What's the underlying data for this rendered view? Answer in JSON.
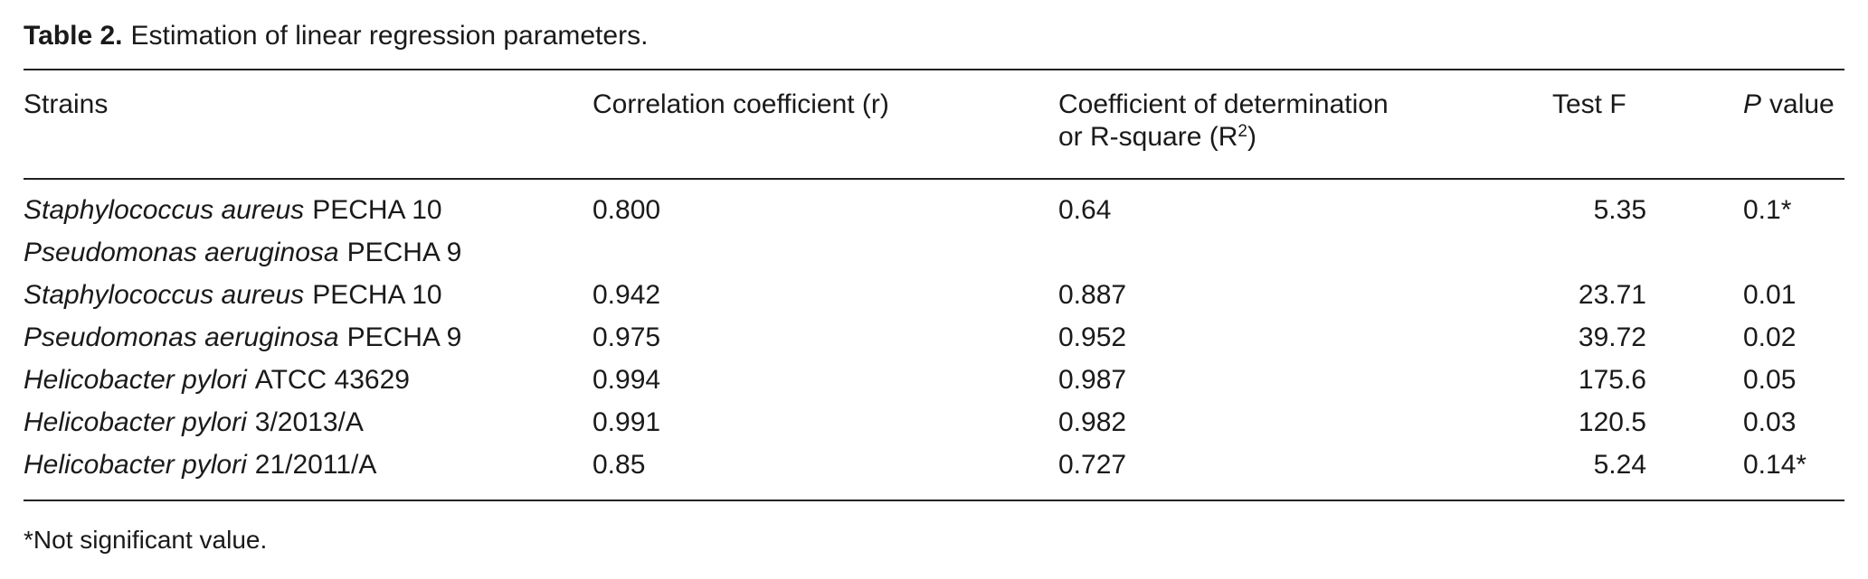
{
  "caption": {
    "label": "Table 2.",
    "text": "Estimation of linear regression parameters."
  },
  "table": {
    "header": {
      "strains": "Strains",
      "r": "Correlation coefficient (r)",
      "r2": {
        "line1": "Coefficient of determination",
        "line2": "or R-square (R",
        "sup": "2",
        "close": ")"
      },
      "f": "Test F",
      "p": {
        "italic": "P",
        "rest": "value"
      }
    },
    "rows": [
      {
        "strains": [
          {
            "species": "Staphylococcus aureus",
            "code": "PECHA 10"
          },
          {
            "species": "Pseudomonas aeruginosa",
            "code": "PECHA 9"
          }
        ],
        "r": "0.800",
        "r2": "0.64",
        "f": "5.35",
        "p": "0.1*"
      },
      {
        "strains": [
          {
            "species": "Staphylococcus aureus",
            "code": "PECHA 10"
          }
        ],
        "r": "0.942",
        "r2": "0.887",
        "f": "23.71",
        "p": "0.01"
      },
      {
        "strains": [
          {
            "species": "Pseudomonas aeruginosa",
            "code": "PECHA 9"
          }
        ],
        "r": "0.975",
        "r2": "0.952",
        "f": "39.72",
        "p": "0.02"
      },
      {
        "strains": [
          {
            "species": "Helicobacter pylori",
            "code": "ATCC 43629"
          }
        ],
        "r": "0.994",
        "r2": "0.987",
        "f": "175.6",
        "p": "0.05"
      },
      {
        "strains": [
          {
            "species": "Helicobacter pylori",
            "code": "3/2013/A"
          }
        ],
        "r": "0.991",
        "r2": "0.982",
        "f": "120.5",
        "p": "0.03"
      },
      {
        "strains": [
          {
            "species": "Helicobacter pylori",
            "code": "21/2011/A"
          }
        ],
        "r": "0.85",
        "r2": "0.727",
        "f": "5.24",
        "p": "0.14*"
      }
    ]
  },
  "footnote": "*Not significant value."
}
